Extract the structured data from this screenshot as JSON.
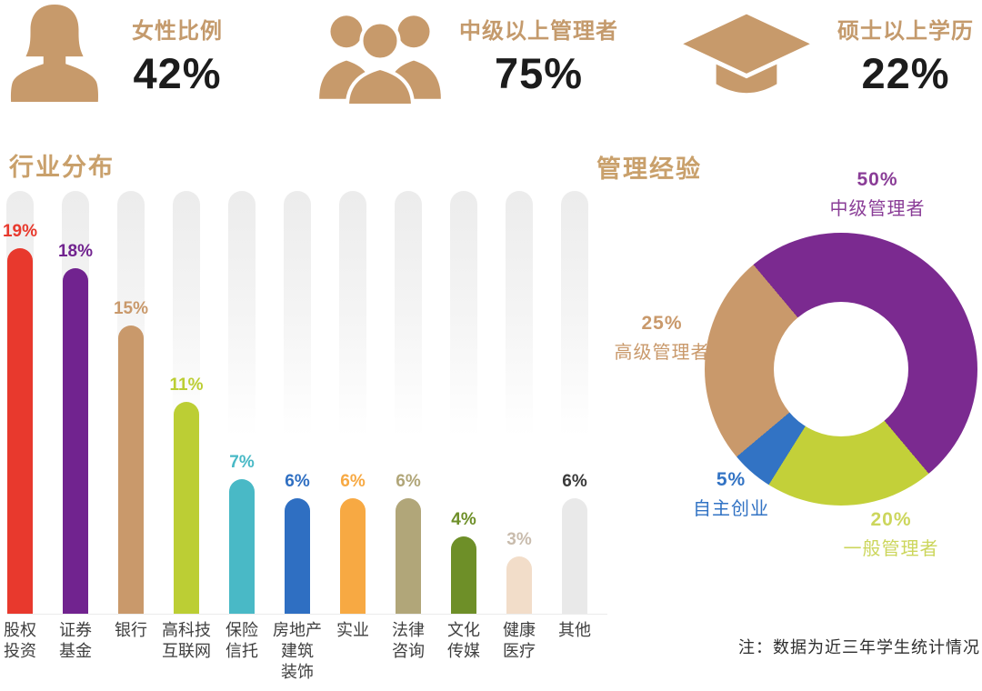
{
  "stats": [
    {
      "icon": "woman-icon",
      "label": "女性比例",
      "value": "42%"
    },
    {
      "icon": "managers-group-icon",
      "label": "中级以上管理者",
      "value": "75%"
    },
    {
      "icon": "graduation-cap-icon",
      "label": "硕士以上学历",
      "value": "22%"
    }
  ],
  "colors": {
    "icon_tan": "#c79a6b",
    "title_tan": "#c9a06b",
    "stat_value": "#1c1c1c",
    "category_text": "#3f3f3f",
    "note_text": "#2e2e2e"
  },
  "chart_data": [
    {
      "type": "bar",
      "title": "行业分布",
      "categories": [
        "股权投资",
        "证券基金",
        "银行",
        "高科技互联网",
        "保险信托",
        "房地产建筑装饰",
        "实业",
        "法律咨询",
        "文化传媒",
        "健康医疗",
        "其他"
      ],
      "category_lines": [
        [
          "股权",
          "投资"
        ],
        [
          "证券",
          "基金"
        ],
        [
          "银行"
        ],
        [
          "高科技",
          "互联网"
        ],
        [
          "保险",
          "信托"
        ],
        [
          "房地产",
          "建筑",
          "装饰"
        ],
        [
          "实业"
        ],
        [
          "法律",
          "咨询"
        ],
        [
          "文化",
          "传媒"
        ],
        [
          "健康",
          "医疗"
        ],
        [
          "其他"
        ]
      ],
      "values": [
        19,
        18,
        15,
        11,
        7,
        6,
        6,
        6,
        4,
        3,
        6
      ],
      "unit": "%",
      "bar_colors": [
        "#e8392d",
        "#71238f",
        "#c9996b",
        "#bcce34",
        "#49b9c6",
        "#2f6fc2",
        "#f7a943",
        "#b1a679",
        "#6e8f28",
        "#f2ddc9",
        "#e9e9e9"
      ],
      "value_label_colors": [
        "#e8392d",
        "#71238f",
        "#c9996b",
        "#bcce34",
        "#49b9c6",
        "#2f6fc2",
        "#f7a943",
        "#b1a679",
        "#6e8f28",
        "#c9bcad",
        "#3a3a3a"
      ],
      "ylabel": "",
      "xlabel": "",
      "ylim": [
        0,
        22
      ],
      "grid": false,
      "track_background": true
    },
    {
      "type": "donut",
      "title": "管理经验",
      "start_angle_deg": -40,
      "slices": [
        {
          "label": "中级管理者",
          "value": 50,
          "color": "#7b2a90",
          "label_color": "#8a3d97"
        },
        {
          "label": "一般管理者",
          "value": 20,
          "color": "#c3d039",
          "label_color": "#ccd65c"
        },
        {
          "label": "自主创业",
          "value": 5,
          "color": "#3273c4",
          "label_color": "#3273c4"
        },
        {
          "label": "高级管理者",
          "value": 25,
          "color": "#c9996b",
          "label_color": "#c9996b"
        }
      ],
      "unit": "%"
    }
  ],
  "note": "注：数据为近三年学生统计情况"
}
